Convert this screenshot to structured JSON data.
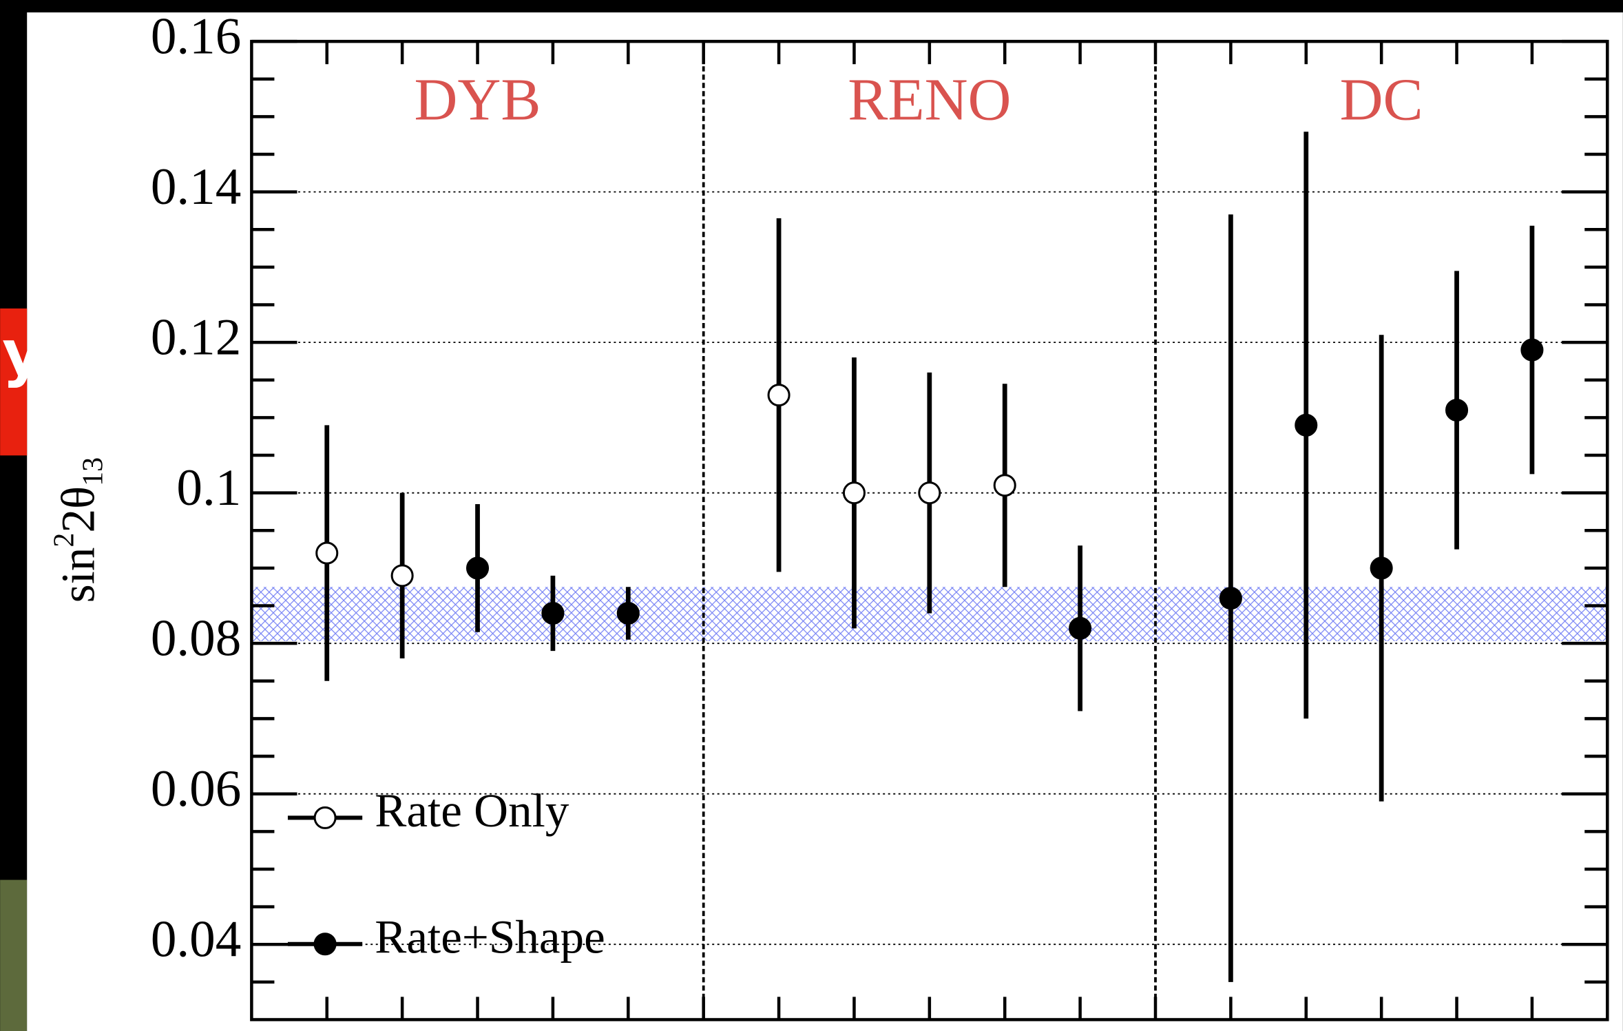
{
  "background": {
    "badge": "y"
  },
  "chart_data": {
    "type": "errorbar",
    "ylabel": {
      "base": "sin",
      "sup": "2",
      "main": "2θ",
      "sub": "13"
    },
    "xlim": [
      0,
      18
    ],
    "xticks": [
      1,
      2,
      3,
      4,
      5,
      6,
      7,
      8,
      9,
      10,
      11,
      12,
      13,
      14,
      15,
      16,
      17
    ],
    "ylim": [
      0.03,
      0.16
    ],
    "yticks": [
      0.04,
      0.06,
      0.08,
      0.1,
      0.12,
      0.14,
      0.16
    ],
    "yminorticks": [
      0.035,
      0.045,
      0.05,
      0.055,
      0.065,
      0.07,
      0.075,
      0.085,
      0.09,
      0.095,
      0.105,
      0.11,
      0.115,
      0.125,
      0.13,
      0.135,
      0.145,
      0.15,
      0.155
    ],
    "grid": true,
    "dividers": [
      6,
      12
    ],
    "groups": [
      {
        "label": "DYB",
        "color": "#d9534f"
      },
      {
        "label": "RENO",
        "color": "#d9534f"
      },
      {
        "label": "DC",
        "color": "#d9534f"
      }
    ],
    "band": {
      "range": [
        0.0803,
        0.0875
      ],
      "color": "#3b4cf0"
    },
    "legend": "lower-left",
    "series": [
      {
        "name": "Rate Only",
        "marker": "open",
        "color": "#000000",
        "x": [
          1,
          2,
          7,
          8,
          9,
          10
        ],
        "values": [
          0.092,
          0.089,
          0.113,
          0.1,
          0.1,
          0.101
        ],
        "errors": [
          0.017,
          0.011,
          0.0235,
          0.018,
          0.016,
          0.0135
        ]
      },
      {
        "name": "Rate+Shape",
        "marker": "filled",
        "color": "#000000",
        "x": [
          3,
          4,
          5,
          11,
          13,
          14,
          15,
          16,
          17
        ],
        "values": [
          0.09,
          0.084,
          0.084,
          0.082,
          0.086,
          0.109,
          0.09,
          0.111,
          0.119
        ],
        "errors": [
          0.0085,
          0.005,
          0.0035,
          0.011,
          0.051,
          0.039,
          0.031,
          0.0185,
          0.0165
        ]
      }
    ]
  }
}
